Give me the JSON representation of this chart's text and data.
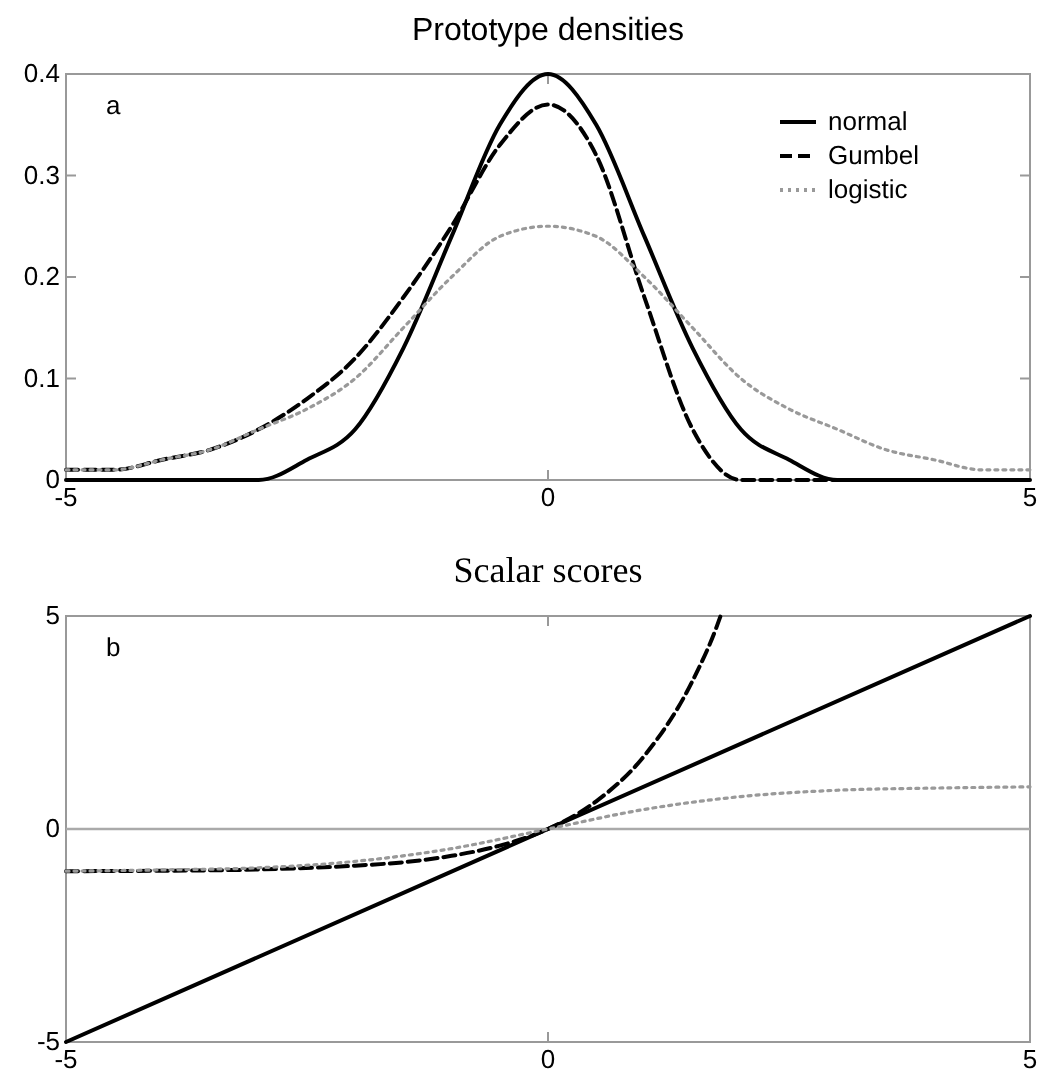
{
  "chart_data": [
    {
      "type": "line",
      "title": "Prototype densities",
      "x": [
        -5,
        -4.5,
        -4,
        -3.5,
        -3,
        -2.5,
        -2,
        -1.5,
        -1,
        -0.5,
        0,
        0.5,
        1,
        1.5,
        2,
        2.5,
        3,
        3.5,
        4,
        4.5,
        5
      ],
      "series": [
        {
          "name": "normal",
          "color": "#000000",
          "line_style": "solid",
          "values": [
            0,
            0,
            0,
            0,
            0,
            0.02,
            0.05,
            0.13,
            0.24,
            0.35,
            0.4,
            0.35,
            0.24,
            0.13,
            0.05,
            0.02,
            0,
            0,
            0,
            0,
            0
          ]
        },
        {
          "name": "Gumbel",
          "color": "#000000",
          "line_style": "dashed",
          "values": [
            0.01,
            0.01,
            0.02,
            0.03,
            0.05,
            0.08,
            0.12,
            0.18,
            0.25,
            0.33,
            0.37,
            0.32,
            0.18,
            0.05,
            0,
            0,
            0,
            0,
            0,
            0,
            0
          ]
        },
        {
          "name": "logistic",
          "color": "#999999",
          "line_style": "dotted",
          "values": [
            0.01,
            0.01,
            0.02,
            0.03,
            0.05,
            0.07,
            0.1,
            0.15,
            0.2,
            0.24,
            0.25,
            0.24,
            0.2,
            0.15,
            0.1,
            0.07,
            0.05,
            0.03,
            0.02,
            0.01,
            0.01
          ]
        }
      ],
      "xlim": [
        -5,
        5
      ],
      "xticks": [
        -5,
        0,
        5
      ],
      "ylim": [
        0,
        0.4
      ],
      "yticks": [
        0,
        0.1,
        0.2,
        0.3,
        0.4
      ],
      "grid": false,
      "legend": "top right",
      "annotations": [
        "a"
      ]
    },
    {
      "type": "line",
      "title": "Scalar scores",
      "series": [
        {
          "color": "#000000",
          "line_style": "solid",
          "x": [
            -5,
            5
          ],
          "values": [
            -5,
            5
          ]
        },
        {
          "color": "#000000",
          "line_style": "dashed",
          "x": [
            -5,
            -4,
            -3,
            -2,
            -1.5,
            -1,
            -0.5,
            0,
            0.5,
            1,
            1.5,
            1.75,
            1.79
          ],
          "values": [
            -0.99,
            -0.98,
            -0.95,
            -0.86,
            -0.78,
            -0.63,
            -0.39,
            0,
            0.65,
            1.72,
            3.48,
            4.75,
            5
          ]
        },
        {
          "color": "#999999",
          "line_style": "dotted",
          "x": [
            -5,
            -4,
            -3,
            -2,
            -1,
            0,
            1,
            2,
            3,
            4,
            5
          ],
          "values": [
            -0.99,
            -0.96,
            -0.91,
            -0.76,
            -0.46,
            0,
            0.46,
            0.76,
            0.91,
            0.96,
            0.99
          ]
        }
      ],
      "xlim": [
        -5,
        5
      ],
      "xticks": [
        -5,
        0,
        5
      ],
      "ylim": [
        -5,
        5
      ],
      "yticks": [
        -5,
        0,
        5
      ],
      "grid": false,
      "legend": false,
      "ref_lines": [
        {
          "axis": "y",
          "value": 0,
          "color": "#aaaaaa"
        }
      ],
      "annotations": [
        "b"
      ]
    }
  ]
}
